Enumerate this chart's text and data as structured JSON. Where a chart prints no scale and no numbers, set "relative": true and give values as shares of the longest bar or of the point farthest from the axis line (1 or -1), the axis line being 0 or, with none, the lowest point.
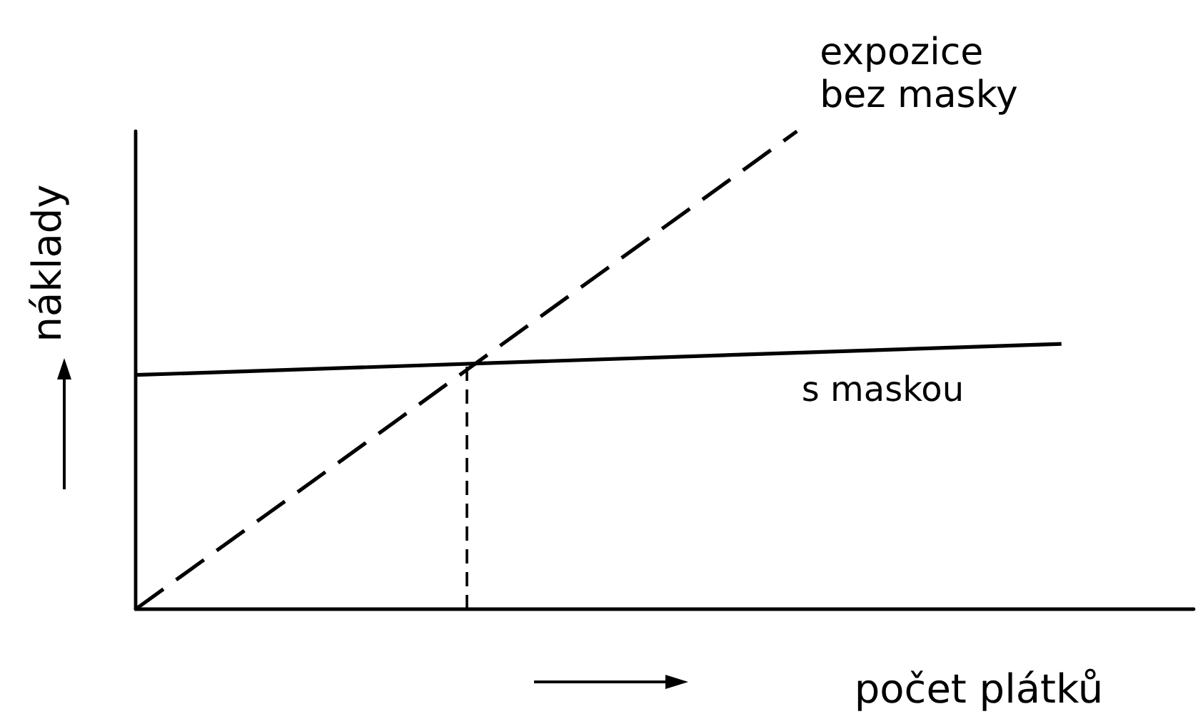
{
  "chart_data": {
    "type": "line",
    "relative": true,
    "xlabel": "počet plátků",
    "ylabel": "náklady",
    "marker": "none",
    "categories": [
      null,
      null,
      null,
      null,
      null,
      null,
      null,
      null,
      null,
      null,
      null,
      null,
      null,
      null,
      null,
      null,
      null
    ],
    "series": [
      {
        "name": "expozice bez masky",
        "color": "#000000",
        "line_style": "dashed",
        "values": [
          0,
          0.1,
          0.2,
          0.3,
          0.4,
          0.5,
          0.6,
          0.7,
          0.8,
          0.9,
          1,
          null,
          null,
          null,
          null,
          null,
          null
        ]
      },
      {
        "name": "s maskou",
        "color": "#000000",
        "line_style": "solid",
        "values": [
          0.49,
          null,
          null,
          null,
          null,
          null,
          null,
          null,
          null,
          null,
          null,
          null,
          null,
          null,
          0.555,
          null,
          null
        ]
      }
    ]
  }
}
